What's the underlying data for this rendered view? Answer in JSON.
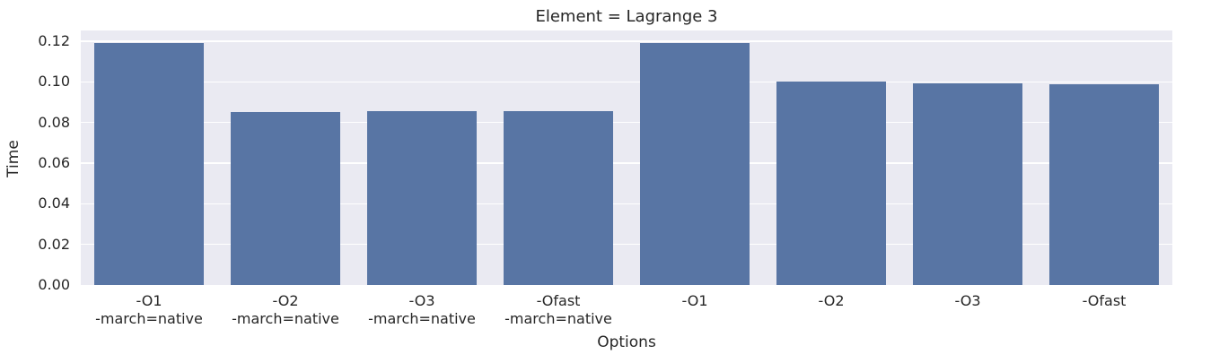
{
  "chart_data": {
    "type": "bar",
    "title": "Element = Lagrange 3",
    "xlabel": "Options",
    "ylabel": "Time",
    "categories": [
      "-O1\n-march=native",
      "-O2\n-march=native",
      "-O3\n-march=native",
      "-Ofast\n-march=native",
      "-O1",
      "-O2",
      "-O3",
      "-Ofast"
    ],
    "values": [
      0.1193,
      0.0852,
      0.0856,
      0.0856,
      0.1193,
      0.1001,
      0.0992,
      0.0988
    ],
    "yticks": [
      0.0,
      0.02,
      0.04,
      0.06,
      0.08,
      0.1,
      0.12
    ],
    "ytick_labels": [
      "0.00",
      "0.02",
      "0.04",
      "0.06",
      "0.08",
      "0.10",
      "0.12"
    ],
    "ylim": [
      0,
      0.1253
    ],
    "grid": true,
    "legend_position": "none",
    "colors": {
      "bar": "#5875a4",
      "plot_bg": "#eaeaf2",
      "grid": "#ffffff",
      "text": "#262626",
      "figure_bg": "#ffffff"
    }
  }
}
